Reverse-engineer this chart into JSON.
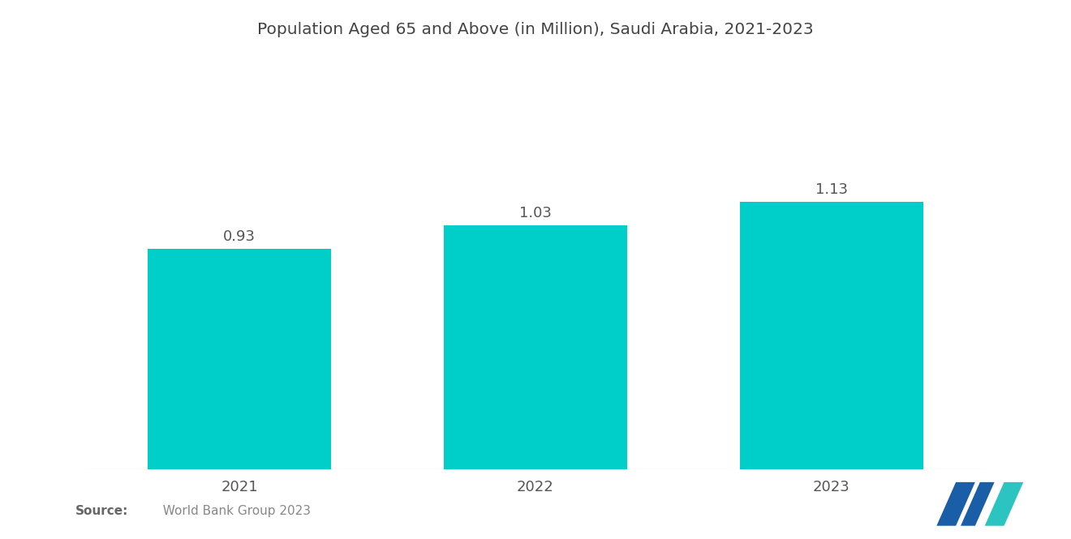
{
  "title": "Population Aged 65 and Above (in Million), Saudi Arabia, 2021-2023",
  "categories": [
    "2021",
    "2022",
    "2023"
  ],
  "values": [
    0.93,
    1.03,
    1.13
  ],
  "bar_color": "#00CEC8",
  "background_color": "#ffffff",
  "title_fontsize": 14.5,
  "tick_fontsize": 13,
  "value_fontsize": 13,
  "ylim": [
    0,
    1.55
  ],
  "bar_width": 0.62,
  "xlim_left": -0.52,
  "xlim_right": 2.52
}
